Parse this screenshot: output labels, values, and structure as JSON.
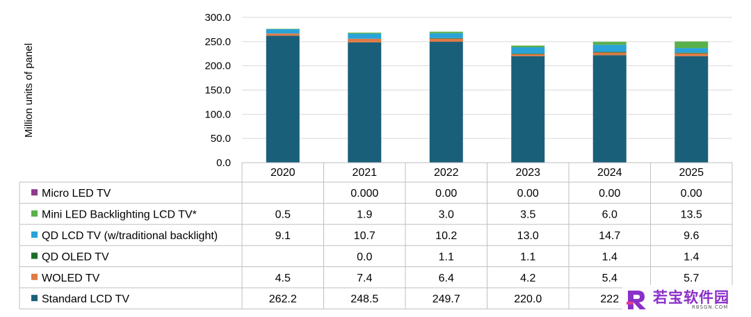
{
  "chart_data": {
    "type": "bar",
    "stacked": true,
    "categories": [
      "2020",
      "2021",
      "2022",
      "2023",
      "2024",
      "2025"
    ],
    "ylabel": "Million units of panel",
    "ylim": [
      0,
      300
    ],
    "yticks": [
      "0.0",
      "50.0",
      "100.0",
      "150.0",
      "200.0",
      "250.0",
      "300.0"
    ],
    "grid": true,
    "legend_placement": "data-table-left",
    "series": [
      {
        "name": "Standard LCD TV",
        "color": "#1a5f7a",
        "values": [
          262.2,
          248.5,
          249.7,
          220.0,
          222.0,
          220.0
        ],
        "labels": [
          "262.2",
          "248.5",
          "249.7",
          "220.0",
          "222",
          "220"
        ]
      },
      {
        "name": "WOLED TV",
        "color": "#e07a45",
        "values": [
          4.5,
          7.4,
          6.4,
          4.2,
          5.4,
          5.7
        ],
        "labels": [
          "4.5",
          "7.4",
          "6.4",
          "4.2",
          "5.4",
          "5.7"
        ]
      },
      {
        "name": "QD OLED TV",
        "color": "#1e6b2c",
        "values": [
          0,
          0.0,
          1.1,
          1.1,
          1.4,
          1.4
        ],
        "labels": [
          "",
          "0.0",
          "1.1",
          "1.1",
          "1.4",
          "1.4"
        ]
      },
      {
        "name": "QD LCD TV (w/traditional backlight)",
        "color": "#2aa3d8",
        "values": [
          9.1,
          10.7,
          10.2,
          13.0,
          14.7,
          9.6
        ],
        "labels": [
          "9.1",
          "10.7",
          "10.2",
          "13.0",
          "14.7",
          "9.6"
        ]
      },
      {
        "name": "Mini LED Backlighting LCD TV*",
        "color": "#5ab04a",
        "values": [
          0.5,
          1.9,
          3.0,
          3.5,
          6.0,
          13.5
        ],
        "labels": [
          "0.5",
          "1.9",
          "3.0",
          "3.5",
          "6.0",
          "13.5"
        ]
      },
      {
        "name": "Micro LED TV",
        "color": "#8e3b8c",
        "values": [
          0,
          0.0,
          0.0,
          0.0,
          0.0,
          0.0
        ],
        "labels": [
          "",
          "0.000",
          "0.00",
          "0.00",
          "0.00",
          "0.00"
        ]
      }
    ],
    "table_row_order": [
      "Micro LED TV",
      "Mini LED Backlighting LCD TV*",
      "QD LCD TV (w/traditional backlight)",
      "QD OLED TV",
      "WOLED TV",
      "Standard LCD TV"
    ]
  },
  "watermark": {
    "title": "若宝软件园",
    "subtitle": "RBSGN.COM"
  }
}
